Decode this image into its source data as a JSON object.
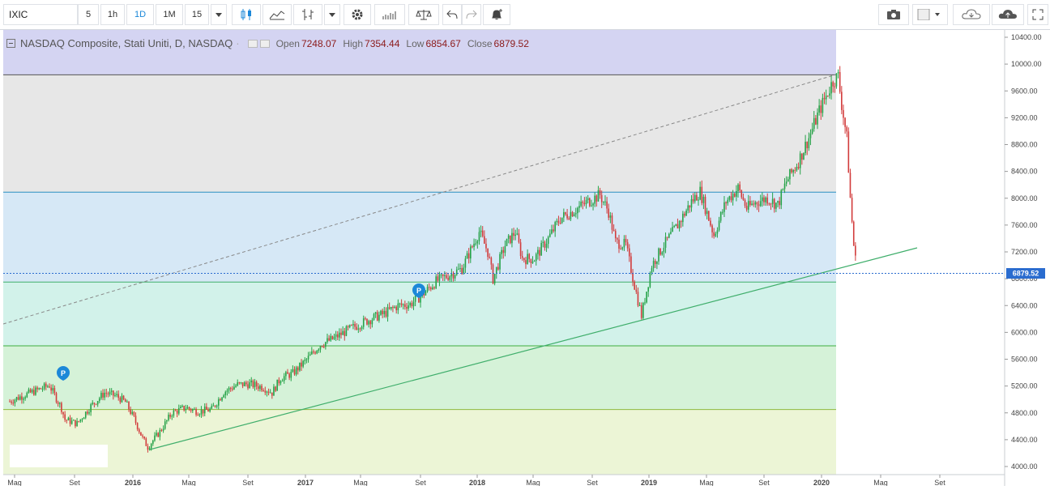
{
  "toolbar": {
    "symbol": "IXIC",
    "intervals": [
      "5",
      "1h",
      "1D",
      "1M",
      "15"
    ],
    "active_interval": "1D",
    "accent": "#1c88d8"
  },
  "legend": {
    "title": "NASDAQ Composite, Stati Uniti, D, NASDAQ",
    "open_label": "Open",
    "open": "7248.07",
    "high_label": "High",
    "high": "7354.44",
    "low_label": "Low",
    "low": "6854.67",
    "close_label": "Close",
    "close": "6879.52"
  },
  "chart_data": {
    "type": "candlestick",
    "y_ticks": [
      "10400.00",
      "10000.00",
      "9600.00",
      "9200.00",
      "8800.00",
      "8400.00",
      "8000.00",
      "7600.00",
      "7200.00",
      "6800.00",
      "6400.00",
      "6000.00",
      "5600.00",
      "5200.00",
      "4800.00",
      "4400.00",
      "4000.00"
    ],
    "ylim": [
      4000,
      10400
    ],
    "x_ticks": [
      "Mag",
      "Set",
      "2016",
      "Mag",
      "Set",
      "2017",
      "Mag",
      "Set",
      "2018",
      "Mag",
      "Set",
      "2019",
      "Mag",
      "Set",
      "2020",
      "Mag",
      "Set"
    ],
    "last_price": "6879.52",
    "levels": [
      9840,
      8090,
      6750,
      5800,
      4850
    ],
    "zone_colors": [
      "#d4d4f2",
      "#e7e7e7",
      "#d6e8f6",
      "#d2f2ea",
      "#d5f2d8",
      "#ecf5d6"
    ],
    "marker_label": "P",
    "series": [
      [
        2015.33,
        4970
      ],
      [
        2015.4,
        5050
      ],
      [
        2015.5,
        5150
      ],
      [
        2015.56,
        5210
      ],
      [
        2015.63,
        4870
      ],
      [
        2015.65,
        4700
      ],
      [
        2015.72,
        4640
      ],
      [
        2015.8,
        4900
      ],
      [
        2015.88,
        5100
      ],
      [
        2015.95,
        5050
      ],
      [
        2016.0,
        4960
      ],
      [
        2016.05,
        4720
      ],
      [
        2016.1,
        4420
      ],
      [
        2016.13,
        4290
      ],
      [
        2016.2,
        4520
      ],
      [
        2016.27,
        4800
      ],
      [
        2016.35,
        4880
      ],
      [
        2016.42,
        4820
      ],
      [
        2016.5,
        4850
      ],
      [
        2016.57,
        5110
      ],
      [
        2016.65,
        5220
      ],
      [
        2016.72,
        5230
      ],
      [
        2016.8,
        5180
      ],
      [
        2016.85,
        5100
      ],
      [
        2016.9,
        5320
      ],
      [
        2016.97,
        5390
      ],
      [
        2017.05,
        5590
      ],
      [
        2017.13,
        5820
      ],
      [
        2017.2,
        5900
      ],
      [
        2017.3,
        6050
      ],
      [
        2017.38,
        6150
      ],
      [
        2017.45,
        6230
      ],
      [
        2017.5,
        6280
      ],
      [
        2017.58,
        6400
      ],
      [
        2017.65,
        6420
      ],
      [
        2017.72,
        6560
      ],
      [
        2017.8,
        6760
      ],
      [
        2017.88,
        6860
      ],
      [
        2017.95,
        6950
      ],
      [
        2018.05,
        7500
      ],
      [
        2018.1,
        7200
      ],
      [
        2018.13,
        6800
      ],
      [
        2018.2,
        7300
      ],
      [
        2018.26,
        7500
      ],
      [
        2018.3,
        7100
      ],
      [
        2018.37,
        7100
      ],
      [
        2018.45,
        7400
      ],
      [
        2018.52,
        7700
      ],
      [
        2018.6,
        7820
      ],
      [
        2018.68,
        7950
      ],
      [
        2018.75,
        8050
      ],
      [
        2018.8,
        7800
      ],
      [
        2018.84,
        7350
      ],
      [
        2018.9,
        7300
      ],
      [
        2018.95,
        6700
      ],
      [
        2018.99,
        6250
      ],
      [
        2019.05,
        7000
      ],
      [
        2019.12,
        7300
      ],
      [
        2019.2,
        7600
      ],
      [
        2019.28,
        7950
      ],
      [
        2019.33,
        8100
      ],
      [
        2019.38,
        7700
      ],
      [
        2019.41,
        7450
      ],
      [
        2019.48,
        7950
      ],
      [
        2019.55,
        8150
      ],
      [
        2019.6,
        7850
      ],
      [
        2019.66,
        7950
      ],
      [
        2019.72,
        8000
      ],
      [
        2019.78,
        7900
      ],
      [
        2019.83,
        8250
      ],
      [
        2019.9,
        8550
      ],
      [
        2019.96,
        8900
      ],
      [
        2020.02,
        9300
      ],
      [
        2020.1,
        9750
      ],
      [
        2020.13,
        9820
      ],
      [
        2020.15,
        9400
      ],
      [
        2020.18,
        8900
      ],
      [
        2020.2,
        8000
      ],
      [
        2020.22,
        7300
      ],
      [
        2020.24,
        6879.52
      ]
    ]
  }
}
